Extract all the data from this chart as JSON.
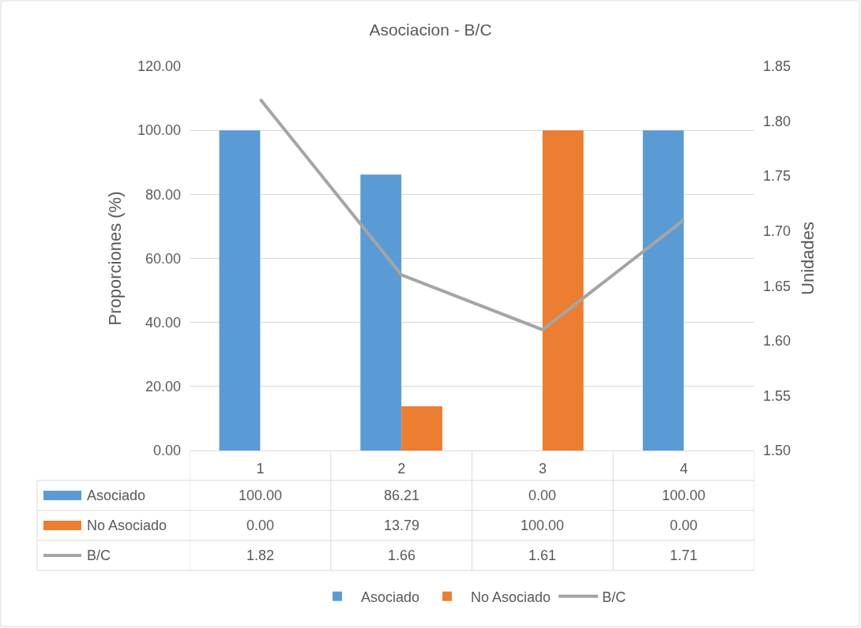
{
  "chart_data": {
    "type": "bar",
    "title": "Asociacion - B/C",
    "ylabel": "Proporciones (%)",
    "y2label": "Unidades",
    "categories": [
      "1",
      "2",
      "3",
      "4"
    ],
    "series": [
      {
        "name": "Asociado",
        "color": "#5b9bd5",
        "values": [
          100,
          86.21,
          0,
          100
        ],
        "value_labels": [
          "100.00",
          "86.21",
          "0.00",
          "100.00"
        ]
      },
      {
        "name": "No Asociado",
        "color": "#ed7d31",
        "values": [
          0,
          13.79,
          100,
          0
        ],
        "value_labels": [
          "0.00",
          "13.79",
          "100.00",
          "0.00"
        ]
      },
      {
        "name": "B/C",
        "type": "line",
        "axis": "y2",
        "color": "#a5a5a5",
        "values": [
          1.82,
          1.66,
          1.61,
          1.71
        ],
        "value_labels": [
          "1.82",
          "1.66",
          "1.61",
          "1.71"
        ]
      }
    ],
    "ylim": [
      0,
      120
    ],
    "yticks": [
      {
        "value": 0,
        "label": "0.00"
      },
      {
        "value": 20,
        "label": "20.00"
      },
      {
        "value": 40,
        "label": "40.00"
      },
      {
        "value": 60,
        "label": "60.00"
      },
      {
        "value": 80,
        "label": "80.00"
      },
      {
        "value": 100,
        "label": "100.00"
      },
      {
        "value": 120,
        "label": "120.00"
      }
    ],
    "y2lim": [
      1.5,
      1.85
    ],
    "y2ticks": [
      {
        "value": 1.5,
        "label": "1.50"
      },
      {
        "value": 1.55,
        "label": "1.55"
      },
      {
        "value": 1.6,
        "label": "1.60"
      },
      {
        "value": 1.65,
        "label": "1.65"
      },
      {
        "value": 1.7,
        "label": "1.70"
      },
      {
        "value": 1.75,
        "label": "1.75"
      },
      {
        "value": 1.8,
        "label": "1.80"
      },
      {
        "value": 1.85,
        "label": "1.85"
      }
    ],
    "grid": "y",
    "legend": "bottom"
  }
}
